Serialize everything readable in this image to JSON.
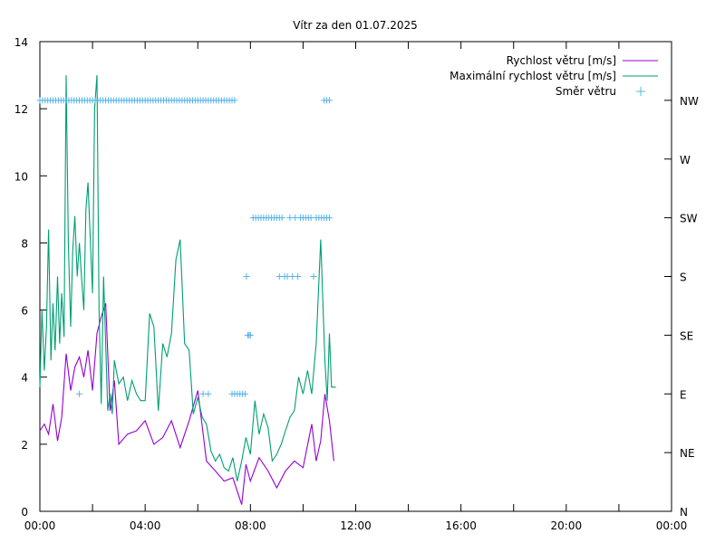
{
  "chart_data": {
    "type": "line",
    "title": "Vítr za den 01.07.2025",
    "x_ticks": [
      "00:00",
      "04:00",
      "08:00",
      "12:00",
      "16:00",
      "20:00",
      "00:00"
    ],
    "y_ticks": [
      "0",
      "2",
      "4",
      "6",
      "8",
      "10",
      "12",
      "14"
    ],
    "y2_ticks": [
      "N",
      "NE",
      "E",
      "SE",
      "S",
      "SW",
      "W",
      "NW"
    ],
    "ylim": [
      0,
      14
    ],
    "xlim_hours": [
      0,
      24
    ],
    "legend_position": "top-right",
    "series": [
      {
        "name": "Rychlost větru [m/s]",
        "color": "#9400d3",
        "axis": "left",
        "x_hours": [
          0.0,
          0.17,
          0.33,
          0.5,
          0.67,
          0.83,
          1.0,
          1.17,
          1.33,
          1.5,
          1.67,
          1.83,
          2.0,
          2.17,
          2.33,
          2.5,
          2.67,
          2.83,
          3.0,
          3.33,
          3.67,
          4.0,
          4.33,
          4.67,
          5.0,
          5.33,
          5.67,
          6.0,
          6.33,
          6.67,
          7.0,
          7.33,
          7.67,
          7.83,
          8.0,
          8.33,
          8.67,
          9.0,
          9.33,
          9.67,
          10.0,
          10.33,
          10.5,
          10.67,
          10.83,
          11.0,
          11.17
        ],
        "values": [
          2.4,
          2.6,
          2.3,
          3.2,
          2.1,
          2.8,
          4.7,
          3.6,
          4.3,
          4.6,
          4.0,
          4.8,
          3.6,
          5.3,
          5.8,
          6.2,
          3.0,
          3.9,
          2.0,
          2.3,
          2.4,
          2.7,
          2.0,
          2.2,
          2.7,
          1.9,
          2.7,
          3.6,
          1.5,
          1.2,
          0.9,
          1.0,
          0.2,
          1.4,
          0.9,
          1.6,
          1.2,
          0.7,
          1.2,
          1.5,
          1.3,
          2.6,
          1.5,
          2.1,
          3.5,
          2.7,
          1.5
        ]
      },
      {
        "name": "Maximální rychlost větru [m/s]",
        "color": "#009e73",
        "axis": "left",
        "x_hours": [
          0.0,
          0.08,
          0.17,
          0.25,
          0.33,
          0.42,
          0.5,
          0.58,
          0.67,
          0.75,
          0.83,
          0.92,
          1.0,
          1.08,
          1.17,
          1.25,
          1.33,
          1.42,
          1.5,
          1.58,
          1.67,
          1.75,
          1.83,
          1.92,
          2.0,
          2.08,
          2.17,
          2.25,
          2.33,
          2.42,
          2.5,
          2.58,
          2.67,
          2.75,
          2.83,
          3.0,
          3.17,
          3.33,
          3.5,
          3.67,
          3.83,
          4.0,
          4.17,
          4.33,
          4.5,
          4.67,
          4.83,
          5.0,
          5.17,
          5.33,
          5.5,
          5.67,
          5.83,
          6.0,
          6.17,
          6.33,
          6.5,
          6.67,
          6.83,
          7.0,
          7.17,
          7.33,
          7.5,
          7.67,
          7.83,
          8.0,
          8.17,
          8.33,
          8.5,
          8.67,
          8.83,
          9.0,
          9.17,
          9.33,
          9.5,
          9.67,
          9.83,
          10.0,
          10.17,
          10.33,
          10.5,
          10.67,
          10.83,
          10.92,
          11.0,
          11.08,
          11.17,
          11.25
        ],
        "values": [
          3.7,
          6.0,
          4.2,
          5.5,
          8.4,
          4.5,
          6.2,
          4.8,
          7.0,
          5.0,
          6.5,
          5.2,
          13.0,
          8.0,
          5.5,
          7.8,
          8.8,
          7.0,
          8.0,
          7.0,
          6.0,
          9.0,
          9.8,
          8.0,
          6.5,
          12.0,
          13.0,
          6.0,
          3.2,
          7.0,
          5.0,
          3.0,
          3.5,
          2.9,
          4.5,
          3.8,
          4.0,
          3.3,
          3.9,
          3.5,
          3.3,
          3.3,
          5.9,
          5.5,
          3.0,
          5.0,
          4.6,
          5.3,
          7.5,
          8.1,
          5.0,
          4.8,
          2.9,
          3.4,
          2.8,
          2.6,
          1.8,
          1.5,
          1.7,
          1.3,
          1.2,
          1.6,
          0.9,
          1.5,
          2.2,
          1.7,
          3.3,
          2.3,
          2.9,
          2.5,
          1.5,
          1.7,
          2.0,
          2.4,
          2.8,
          3.0,
          4.0,
          3.5,
          4.2,
          3.5,
          5.0,
          8.1,
          4.5,
          3.3,
          5.3,
          3.7,
          3.7,
          3.7
        ]
      },
      {
        "name": "Směr větru",
        "color": "#56b4e9",
        "axis": "right",
        "marker": "+",
        "direction_order": [
          "N",
          "NE",
          "E",
          "SE",
          "S",
          "SW",
          "W",
          "NW"
        ],
        "x_hours": [
          0.0,
          0.1,
          0.2,
          0.3,
          0.4,
          0.5,
          0.6,
          0.7,
          0.8,
          0.9,
          1.0,
          1.1,
          1.2,
          1.3,
          1.4,
          1.5,
          1.6,
          1.7,
          1.8,
          1.9,
          2.0,
          2.1,
          2.2,
          2.3,
          2.4,
          2.5,
          2.6,
          2.7,
          2.8,
          2.9,
          3.0,
          3.1,
          3.2,
          3.3,
          3.4,
          3.5,
          3.6,
          3.7,
          3.8,
          3.9,
          4.0,
          4.1,
          4.2,
          4.3,
          4.4,
          4.5,
          4.6,
          4.7,
          4.8,
          4.9,
          5.0,
          5.1,
          5.2,
          5.3,
          5.4,
          5.5,
          5.6,
          5.7,
          5.8,
          5.9,
          6.0,
          6.1,
          6.2,
          6.3,
          6.4,
          6.5,
          6.6,
          6.7,
          6.8,
          6.9,
          7.0,
          7.1,
          7.2,
          7.3,
          7.4,
          1.5,
          6.2,
          6.4,
          7.3,
          7.4,
          7.5,
          7.6,
          7.7,
          7.8,
          7.9,
          8.0,
          7.85,
          7.95,
          8.1,
          8.2,
          8.3,
          8.4,
          8.5,
          8.6,
          8.7,
          8.8,
          8.9,
          9.0,
          9.1,
          9.2,
          9.1,
          9.3,
          9.4,
          9.5,
          9.6,
          9.7,
          9.8,
          9.9,
          10.0,
          10.1,
          10.2,
          10.3,
          10.4,
          10.5,
          10.6,
          10.7,
          10.8,
          10.9,
          11.0,
          10.8,
          10.9,
          11.0
        ],
        "values": [
          "NW",
          "NW",
          "NW",
          "NW",
          "NW",
          "NW",
          "NW",
          "NW",
          "NW",
          "NW",
          "NW",
          "NW",
          "NW",
          "NW",
          "NW",
          "NW",
          "NW",
          "NW",
          "NW",
          "NW",
          "NW",
          "NW",
          "NW",
          "NW",
          "NW",
          "NW",
          "NW",
          "NW",
          "NW",
          "NW",
          "NW",
          "NW",
          "NW",
          "NW",
          "NW",
          "NW",
          "NW",
          "NW",
          "NW",
          "NW",
          "NW",
          "NW",
          "NW",
          "NW",
          "NW",
          "NW",
          "NW",
          "NW",
          "NW",
          "NW",
          "NW",
          "NW",
          "NW",
          "NW",
          "NW",
          "NW",
          "NW",
          "NW",
          "NW",
          "NW",
          "NW",
          "NW",
          "NW",
          "NW",
          "NW",
          "NW",
          "NW",
          "NW",
          "NW",
          "NW",
          "NW",
          "NW",
          "NW",
          "NW",
          "NW",
          "E",
          "E",
          "E",
          "E",
          "E",
          "E",
          "E",
          "E",
          "E",
          "SE",
          "SE",
          "S",
          "SE",
          "SW",
          "SW",
          "SW",
          "SW",
          "SW",
          "SW",
          "SW",
          "SW",
          "SW",
          "SW",
          "SW",
          "SW",
          "S",
          "S",
          "S",
          "SW",
          "S",
          "SW",
          "S",
          "SW",
          "SW",
          "SW",
          "SW",
          "SW",
          "S",
          "SW",
          "SW",
          "SW",
          "SW",
          "SW",
          "SW",
          "NW",
          "NW",
          "NW"
        ]
      }
    ]
  }
}
